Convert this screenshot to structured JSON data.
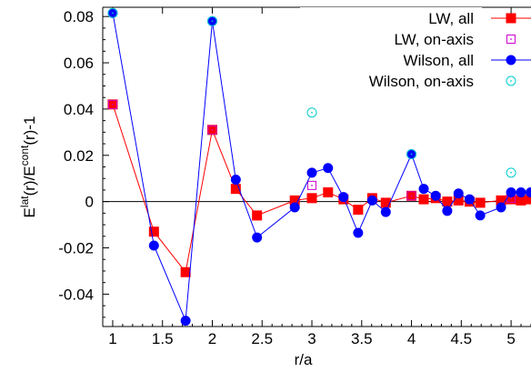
{
  "chart_data": {
    "type": "line",
    "xlabel": "r/a",
    "ylabel_parts": {
      "base1": "E",
      "sup1": "lat",
      "mid": "(r)/E",
      "sup2": "cont",
      "tail": "(r)-1"
    },
    "xlim": [
      0.9,
      5.2
    ],
    "ylim": [
      -0.054,
      0.084
    ],
    "xticks": [
      1,
      1.5,
      2,
      2.5,
      3,
      3.5,
      4,
      4.5,
      5
    ],
    "xtick_labels": [
      "1",
      "1.5",
      "2",
      "2.5",
      "3",
      "3.5",
      "4",
      "4.5",
      "5"
    ],
    "yticks": [
      -0.04,
      -0.02,
      0,
      0.02,
      0.04,
      0.06,
      0.08
    ],
    "ytick_labels": [
      "-0.04",
      "-0.02",
      "0",
      "0.02",
      "0.04",
      "0.06",
      "0.08"
    ],
    "zero_line": true,
    "grid": false,
    "legend_position": "top-right",
    "series": [
      {
        "name": "LW, all",
        "style": "filled-square-line",
        "color": "#ff0000",
        "points": [
          [
            1.0,
            0.042
          ],
          [
            1.414,
            -0.013
          ],
          [
            1.732,
            -0.0305
          ],
          [
            2.0,
            0.031
          ],
          [
            2.236,
            0.0055
          ],
          [
            2.449,
            -0.006
          ],
          [
            2.828,
            0.0005
          ],
          [
            3.0,
            0.0015
          ],
          [
            3.162,
            0.004
          ],
          [
            3.317,
            0.001
          ],
          [
            3.464,
            -0.0035
          ],
          [
            3.606,
            0.0015
          ],
          [
            3.742,
            -0.0005
          ],
          [
            4.0,
            0.0025
          ],
          [
            4.123,
            0.001
          ],
          [
            4.243,
            0.0015
          ],
          [
            4.359,
            0.0
          ],
          [
            4.472,
            0.0005
          ],
          [
            4.583,
            0.0
          ],
          [
            4.69,
            -0.0005
          ],
          [
            4.899,
            0.0005
          ],
          [
            5.0,
            0.001
          ],
          [
            5.099,
            0.0005
          ],
          [
            5.196,
            0.001
          ]
        ]
      },
      {
        "name": "LW, on-axis",
        "style": "open-square",
        "color": "#cc00cc",
        "points": [
          [
            1.0,
            0.042
          ],
          [
            2.0,
            0.031
          ],
          [
            3.0,
            0.007
          ],
          [
            4.0,
            0.0025
          ],
          [
            5.0,
            0.0015
          ]
        ]
      },
      {
        "name": "Wilson, all",
        "style": "filled-circle-line",
        "color": "#0000ff",
        "points": [
          [
            1.0,
            0.0815
          ],
          [
            1.414,
            -0.019
          ],
          [
            1.732,
            -0.0515
          ],
          [
            2.0,
            0.078
          ],
          [
            2.236,
            0.0095
          ],
          [
            2.449,
            -0.0155
          ],
          [
            2.828,
            -0.0025
          ],
          [
            3.0,
            0.0125
          ],
          [
            3.162,
            0.0145
          ],
          [
            3.317,
            0.002
          ],
          [
            3.464,
            -0.0135
          ],
          [
            3.606,
            0.0005
          ],
          [
            3.742,
            -0.0045
          ],
          [
            4.0,
            0.0205
          ],
          [
            4.123,
            0.0055
          ],
          [
            4.243,
            0.0025
          ],
          [
            4.359,
            -0.004
          ],
          [
            4.472,
            0.0035
          ],
          [
            4.583,
            0.001
          ],
          [
            4.69,
            -0.006
          ],
          [
            4.899,
            -0.0025
          ],
          [
            5.0,
            0.004
          ],
          [
            5.099,
            0.004
          ],
          [
            5.196,
            0.004
          ]
        ]
      },
      {
        "name": "Wilson, on-axis",
        "style": "open-circle",
        "color": "#00cccc",
        "points": [
          [
            1.0,
            0.0815
          ],
          [
            2.0,
            0.078
          ],
          [
            3.0,
            0.0385
          ],
          [
            4.0,
            0.0205
          ],
          [
            5.0,
            0.0125
          ]
        ]
      }
    ]
  }
}
